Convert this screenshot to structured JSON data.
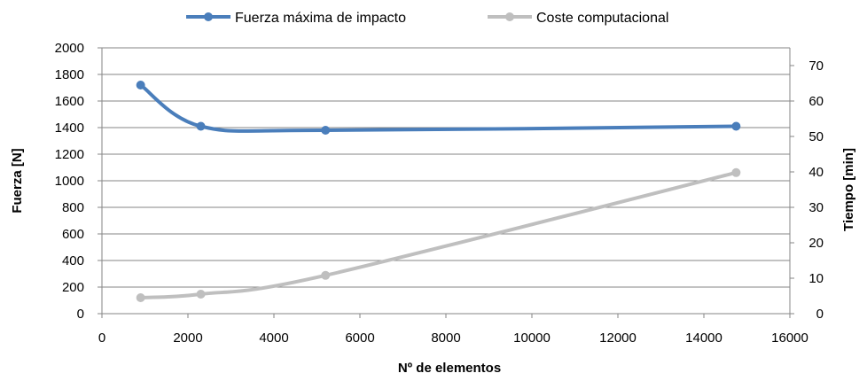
{
  "chart_data": {
    "type": "line",
    "title": "",
    "xlabel": "Nº de elementos",
    "ylabel": "Fuerza [N]",
    "y2label": "Tiempo [min]",
    "xlim": [
      0,
      16000
    ],
    "ylim": [
      0,
      2000
    ],
    "y2lim": [
      0,
      75
    ],
    "x_ticks": [
      0,
      2000,
      4000,
      6000,
      8000,
      10000,
      12000,
      14000,
      16000
    ],
    "y_ticks": [
      0,
      200,
      400,
      600,
      800,
      1000,
      1200,
      1400,
      1600,
      1800,
      2000
    ],
    "y2_ticks": [
      0,
      10,
      20,
      30,
      40,
      50,
      60,
      70
    ],
    "grid": "horizontal",
    "legend": "top",
    "series": [
      {
        "name": "Fuerza máxima de impacto",
        "axis": "left",
        "color": "#4a7ebb",
        "smooth": true,
        "points": [
          [
            900,
            1720
          ],
          [
            2300,
            1410
          ],
          [
            5200,
            1380
          ],
          [
            14750,
            1410
          ]
        ]
      },
      {
        "name": "Coste computacional",
        "axis": "right",
        "color": "#bfbfbf",
        "smooth": true,
        "points": [
          [
            900,
            4.5
          ],
          [
            2300,
            5.5
          ],
          [
            5200,
            10.8
          ],
          [
            14750,
            39.8
          ]
        ]
      }
    ]
  }
}
